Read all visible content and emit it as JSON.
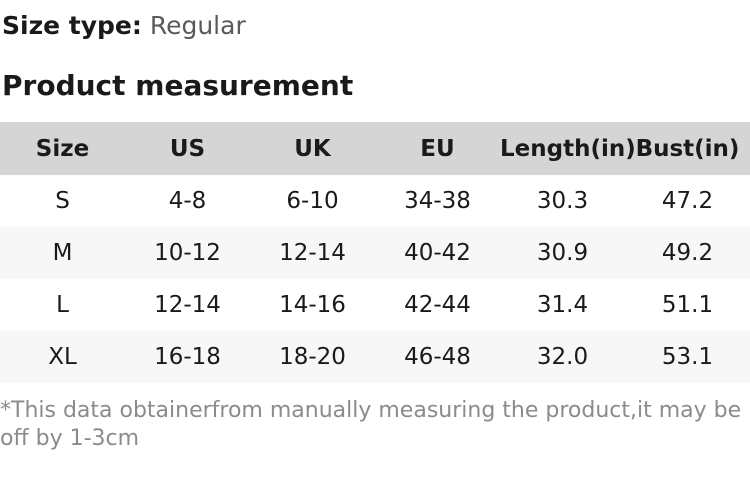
{
  "page": {
    "size_type_label": "Size type:",
    "size_type_value": "Regular",
    "section_title": "Product measurement",
    "footnote": "*This data obtainerfrom manually measuring the product,it may be off by 1-3cm"
  },
  "table": {
    "columns": [
      "Size",
      "US",
      "UK",
      "EU",
      "Length(in)",
      "Bust(in)"
    ],
    "rows": [
      [
        "S",
        "4-8",
        "6-10",
        "34-38",
        "30.3",
        "47.2"
      ],
      [
        "M",
        "10-12",
        "12-14",
        "40-42",
        "30.9",
        "49.2"
      ],
      [
        "L",
        "12-14",
        "14-16",
        "42-44",
        "31.4",
        "51.1"
      ],
      [
        "XL",
        "16-18",
        "18-20",
        "46-48",
        "32.0",
        "53.1"
      ]
    ]
  },
  "colors": {
    "header_bg": "#d5d5d5",
    "alt_row_bg": "#f7f7f7",
    "text": "#1a1a1a",
    "muted": "#5a5a5a",
    "footnote": "#8b8b8b"
  }
}
